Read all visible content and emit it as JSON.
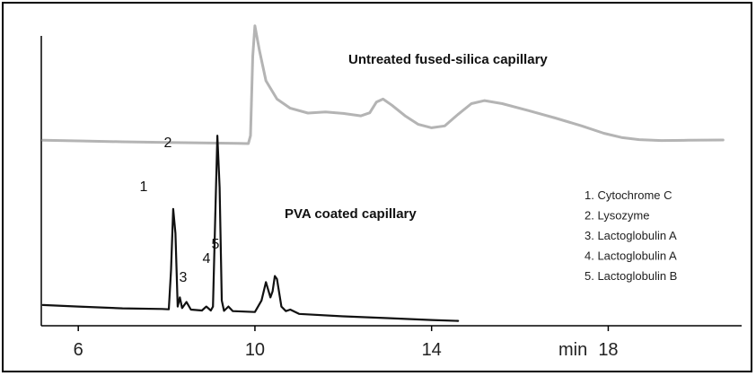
{
  "chart_data": {
    "type": "line",
    "title": "",
    "xlabel": "min",
    "ylabel": "",
    "xlim": [
      5,
      21
    ],
    "ylim": [
      0,
      100
    ],
    "xticks": [
      6,
      10,
      14,
      18
    ],
    "grid": false,
    "series": [
      {
        "name": "Untreated fused-silica capillary",
        "color": "#b4b4b4",
        "points": [
          [
            5.2,
            60.5
          ],
          [
            6,
            60.3
          ],
          [
            7,
            60
          ],
          [
            8,
            59.8
          ],
          [
            9,
            59.6
          ],
          [
            9.6,
            59.5
          ],
          [
            9.85,
            59.4
          ],
          [
            9.9,
            62
          ],
          [
            9.95,
            88
          ],
          [
            10.0,
            98
          ],
          [
            10.1,
            90
          ],
          [
            10.25,
            80
          ],
          [
            10.5,
            74
          ],
          [
            10.8,
            71
          ],
          [
            11.2,
            69.4
          ],
          [
            11.6,
            69.8
          ],
          [
            12.0,
            69.3
          ],
          [
            12.4,
            68.5
          ],
          [
            12.6,
            69.5
          ],
          [
            12.75,
            73
          ],
          [
            12.9,
            74
          ],
          [
            13.1,
            72
          ],
          [
            13.4,
            68.5
          ],
          [
            13.7,
            65.7
          ],
          [
            14.0,
            64.6
          ],
          [
            14.3,
            65.2
          ],
          [
            14.6,
            69
          ],
          [
            14.9,
            72.5
          ],
          [
            15.2,
            73.5
          ],
          [
            15.6,
            72.5
          ],
          [
            16.2,
            70.2
          ],
          [
            16.8,
            67.8
          ],
          [
            17.4,
            65.2
          ],
          [
            17.9,
            62.8
          ],
          [
            18.3,
            61.4
          ],
          [
            18.7,
            60.7
          ],
          [
            19.2,
            60.4
          ],
          [
            19.8,
            60.5
          ],
          [
            20.6,
            60.6
          ]
        ]
      },
      {
        "name": "PVA coated capillary",
        "color": "#111111",
        "points": [
          [
            5.2,
            6.5
          ],
          [
            6,
            6
          ],
          [
            7,
            5.4
          ],
          [
            7.9,
            5.2
          ],
          [
            8.05,
            5.1
          ],
          [
            8.1,
            18
          ],
          [
            8.15,
            38
          ],
          [
            8.2,
            30
          ],
          [
            8.25,
            6
          ],
          [
            8.3,
            9
          ],
          [
            8.35,
            5.5
          ],
          [
            8.45,
            7.5
          ],
          [
            8.55,
            5
          ],
          [
            8.8,
            4.7
          ],
          [
            8.9,
            6
          ],
          [
            9.0,
            4.7
          ],
          [
            9.05,
            6
          ],
          [
            9.1,
            35
          ],
          [
            9.15,
            62
          ],
          [
            9.2,
            45
          ],
          [
            9.25,
            8
          ],
          [
            9.3,
            4.6
          ],
          [
            9.4,
            6
          ],
          [
            9.5,
            4.5
          ],
          [
            10.0,
            4.2
          ],
          [
            10.15,
            8
          ],
          [
            10.25,
            14
          ],
          [
            10.35,
            9
          ],
          [
            10.4,
            11
          ],
          [
            10.45,
            16
          ],
          [
            10.5,
            15
          ],
          [
            10.6,
            6
          ],
          [
            10.7,
            4.5
          ],
          [
            10.8,
            5
          ],
          [
            11.0,
            3.6
          ],
          [
            12,
            2.8
          ],
          [
            13,
            2.2
          ],
          [
            14,
            1.6
          ],
          [
            14.6,
            1.3
          ]
        ]
      }
    ],
    "annotations": {
      "untreated_label": "Untreated fused-silica capillary",
      "pva_label": "PVA coated capillary",
      "peaks": [
        {
          "label": "1",
          "x": 8.15
        },
        {
          "label": "2",
          "x": 9.15
        },
        {
          "label": "3",
          "x": 9.4
        },
        {
          "label": "4",
          "x": 10.25
        },
        {
          "label": "5",
          "x": 10.45
        }
      ]
    },
    "legend": {
      "placement": "right",
      "items": [
        "1.  Cytochrome C",
        "2.  Lysozyme",
        "3.  Lactoglobulin A",
        "4.  Lactoglobulin A",
        "5.  Lactoglobulin B"
      ]
    }
  }
}
